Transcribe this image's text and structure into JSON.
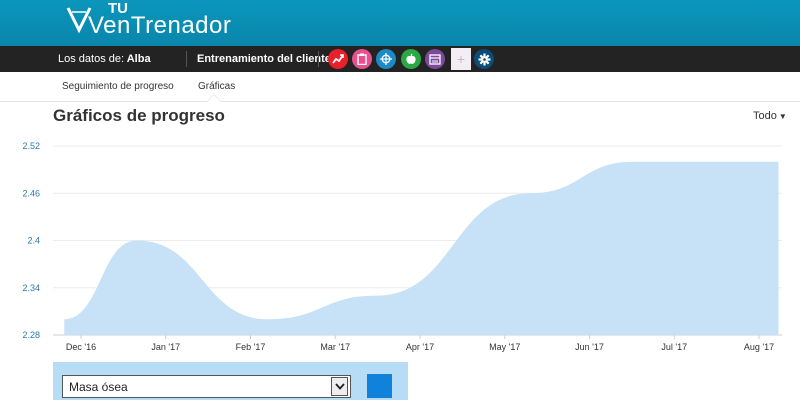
{
  "brand": {
    "logo_main": "VenTrenador",
    "logo_sup": "TU"
  },
  "topnav": {
    "user_prefix": "Los datos de:",
    "user_name": "Alba",
    "training_label": "Entrenamiento del cliente",
    "icons": [
      {
        "name": "progress-icon",
        "color": "#e8202a"
      },
      {
        "name": "clipboard-icon",
        "color": "#e9508f"
      },
      {
        "name": "target-icon",
        "color": "#1b8ac6"
      },
      {
        "name": "apple-icon",
        "color": "#2aa843"
      },
      {
        "name": "calendar-icon",
        "color": "#7b4a9c"
      },
      {
        "name": "plus-icon",
        "color": "#f2eef4"
      },
      {
        "name": "gear-icon",
        "color": "#0b4c78"
      }
    ]
  },
  "subnav": {
    "tabs": [
      {
        "label": "Seguimiento de progreso"
      },
      {
        "label": "Gráficas"
      }
    ],
    "active_tab": "Gráficas"
  },
  "section": {
    "title": "Gráficos de progreso",
    "range_label": "Todo"
  },
  "chart_data": {
    "type": "area",
    "x_labels": [
      "Dec '16",
      "Jan '17",
      "Feb '17",
      "Mar '17",
      "Apr '17",
      "May '17",
      "Jun '17",
      "Jul '17",
      "Aug '17"
    ],
    "y_ticks": [
      "2.52",
      "2.46",
      "2.4",
      "2.34",
      "2.28"
    ],
    "ylim": [
      2.28,
      2.52
    ],
    "points": [
      {
        "x": "2016-11-25",
        "y": 2.3
      },
      {
        "x": "2016-12-21",
        "y": 2.4
      },
      {
        "x": "2017-02-06",
        "y": 2.3
      },
      {
        "x": "2017-03-17",
        "y": 2.33
      },
      {
        "x": "2017-05-11",
        "y": 2.46
      },
      {
        "x": "2017-06-17",
        "y": 2.5
      },
      {
        "x": "2017-08-08",
        "y": 2.5
      }
    ],
    "fill_color": "#c7e1f7",
    "grid": true
  },
  "filters": {
    "metric_value": "Masa ósea"
  }
}
